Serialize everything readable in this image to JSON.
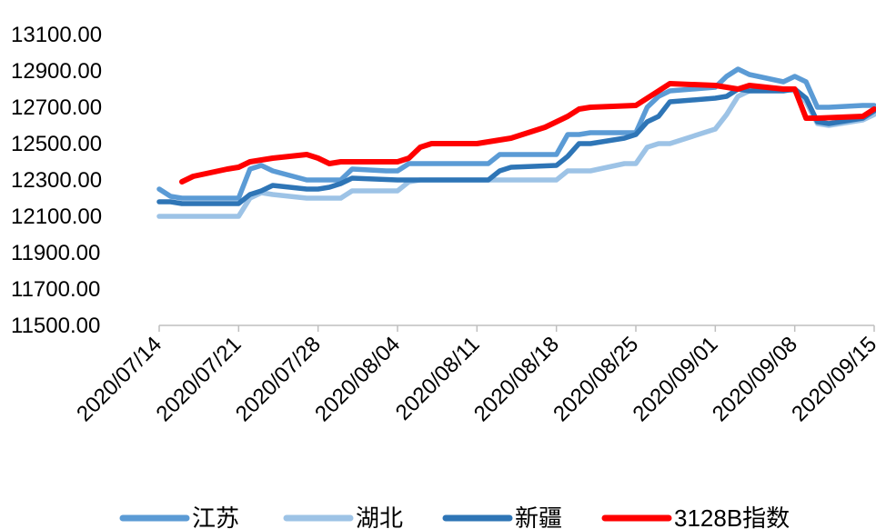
{
  "chart_data": {
    "type": "line",
    "title": "",
    "xlabel": "",
    "ylabel": "",
    "ylim": [
      11500,
      13100
    ],
    "yticks": [
      11500,
      11700,
      11900,
      12100,
      12300,
      12500,
      12700,
      12900,
      13100
    ],
    "ytick_labels": [
      "11500.00",
      "11700.00",
      "11900.00",
      "12100.00",
      "12300.00",
      "12500.00",
      "12700.00",
      "12900.00",
      "13100.00"
    ],
    "xticks": [
      "2020/07/14",
      "2020/07/21",
      "2020/07/28",
      "2020/08/04",
      "2020/08/11",
      "2020/08/18",
      "2020/08/25",
      "2020/09/01",
      "2020/09/08",
      "2020/09/15"
    ],
    "x_start": "2020/07/14",
    "x_end": "2020/09/15",
    "grid": false,
    "legend_position": "bottom",
    "series": [
      {
        "name": "江苏",
        "color": "#5B9BD5",
        "points": [
          [
            "2020/07/14",
            12250
          ],
          [
            "2020/07/15",
            12210
          ],
          [
            "2020/07/16",
            12200
          ],
          [
            "2020/07/21",
            12200
          ],
          [
            "2020/07/22",
            12360
          ],
          [
            "2020/07/23",
            12380
          ],
          [
            "2020/07/24",
            12350
          ],
          [
            "2020/07/27",
            12300
          ],
          [
            "2020/07/29",
            12300
          ],
          [
            "2020/07/30",
            12300
          ],
          [
            "2020/07/31",
            12360
          ],
          [
            "2020/08/03",
            12350
          ],
          [
            "2020/08/04",
            12350
          ],
          [
            "2020/08/05",
            12390
          ],
          [
            "2020/08/12",
            12390
          ],
          [
            "2020/08/13",
            12440
          ],
          [
            "2020/08/18",
            12440
          ],
          [
            "2020/08/19",
            12550
          ],
          [
            "2020/08/20",
            12550
          ],
          [
            "2020/08/21",
            12560
          ],
          [
            "2020/08/25",
            12560
          ],
          [
            "2020/08/26",
            12700
          ],
          [
            "2020/08/27",
            12760
          ],
          [
            "2020/08/28",
            12790
          ],
          [
            "2020/09/01",
            12810
          ],
          [
            "2020/09/02",
            12870
          ],
          [
            "2020/09/03",
            12910
          ],
          [
            "2020/09/04",
            12880
          ],
          [
            "2020/09/07",
            12840
          ],
          [
            "2020/09/08",
            12870
          ],
          [
            "2020/09/09",
            12840
          ],
          [
            "2020/09/10",
            12700
          ],
          [
            "2020/09/11",
            12700
          ],
          [
            "2020/09/14",
            12710
          ],
          [
            "2020/09/15",
            12710
          ]
        ]
      },
      {
        "name": "湖北",
        "color": "#9DC3E6",
        "points": [
          [
            "2020/07/14",
            12100
          ],
          [
            "2020/07/21",
            12100
          ],
          [
            "2020/07/22",
            12200
          ],
          [
            "2020/07/23",
            12230
          ],
          [
            "2020/07/24",
            12220
          ],
          [
            "2020/07/27",
            12200
          ],
          [
            "2020/07/30",
            12200
          ],
          [
            "2020/07/31",
            12240
          ],
          [
            "2020/08/04",
            12240
          ],
          [
            "2020/08/05",
            12290
          ],
          [
            "2020/08/06",
            12300
          ],
          [
            "2020/08/18",
            12300
          ],
          [
            "2020/08/19",
            12350
          ],
          [
            "2020/08/21",
            12350
          ],
          [
            "2020/08/24",
            12390
          ],
          [
            "2020/08/25",
            12390
          ],
          [
            "2020/08/26",
            12480
          ],
          [
            "2020/08/27",
            12500
          ],
          [
            "2020/08/28",
            12500
          ],
          [
            "2020/09/01",
            12580
          ],
          [
            "2020/09/02",
            12660
          ],
          [
            "2020/09/03",
            12760
          ],
          [
            "2020/09/04",
            12790
          ],
          [
            "2020/09/07",
            12800
          ],
          [
            "2020/09/08",
            12790
          ],
          [
            "2020/09/09",
            12730
          ],
          [
            "2020/09/10",
            12610
          ],
          [
            "2020/09/11",
            12600
          ],
          [
            "2020/09/14",
            12630
          ],
          [
            "2020/09/15",
            12660
          ]
        ]
      },
      {
        "name": "新疆",
        "color": "#2E75B6",
        "points": [
          [
            "2020/07/14",
            12180
          ],
          [
            "2020/07/15",
            12180
          ],
          [
            "2020/07/16",
            12170
          ],
          [
            "2020/07/21",
            12170
          ],
          [
            "2020/07/22",
            12220
          ],
          [
            "2020/07/23",
            12240
          ],
          [
            "2020/07/24",
            12270
          ],
          [
            "2020/07/27",
            12250
          ],
          [
            "2020/07/28",
            12250
          ],
          [
            "2020/07/29",
            12260
          ],
          [
            "2020/07/30",
            12280
          ],
          [
            "2020/07/31",
            12310
          ],
          [
            "2020/08/04",
            12300
          ],
          [
            "2020/08/12",
            12300
          ],
          [
            "2020/08/13",
            12350
          ],
          [
            "2020/08/14",
            12370
          ],
          [
            "2020/08/18",
            12380
          ],
          [
            "2020/08/19",
            12430
          ],
          [
            "2020/08/20",
            12500
          ],
          [
            "2020/08/21",
            12500
          ],
          [
            "2020/08/24",
            12530
          ],
          [
            "2020/08/25",
            12550
          ],
          [
            "2020/08/26",
            12620
          ],
          [
            "2020/08/27",
            12650
          ],
          [
            "2020/08/28",
            12730
          ],
          [
            "2020/09/01",
            12750
          ],
          [
            "2020/09/02",
            12760
          ],
          [
            "2020/09/03",
            12800
          ],
          [
            "2020/09/04",
            12790
          ],
          [
            "2020/09/07",
            12790
          ],
          [
            "2020/09/08",
            12800
          ],
          [
            "2020/09/09",
            12750
          ],
          [
            "2020/09/10",
            12620
          ],
          [
            "2020/09/11",
            12610
          ],
          [
            "2020/09/14",
            12640
          ],
          [
            "2020/09/15",
            12680
          ]
        ]
      },
      {
        "name": "3128B指数",
        "color": "#FF0000",
        "points": [
          [
            "2020/07/16",
            12290
          ],
          [
            "2020/07/17",
            12320
          ],
          [
            "2020/07/20",
            12360
          ],
          [
            "2020/07/21",
            12370
          ],
          [
            "2020/07/22",
            12400
          ],
          [
            "2020/07/24",
            12420
          ],
          [
            "2020/07/27",
            12440
          ],
          [
            "2020/07/28",
            12420
          ],
          [
            "2020/07/29",
            12390
          ],
          [
            "2020/07/30",
            12400
          ],
          [
            "2020/08/04",
            12400
          ],
          [
            "2020/08/05",
            12420
          ],
          [
            "2020/08/06",
            12480
          ],
          [
            "2020/08/07",
            12500
          ],
          [
            "2020/08/11",
            12500
          ],
          [
            "2020/08/12",
            12510
          ],
          [
            "2020/08/14",
            12530
          ],
          [
            "2020/08/17",
            12590
          ],
          [
            "2020/08/18",
            12620
          ],
          [
            "2020/08/19",
            12650
          ],
          [
            "2020/08/20",
            12690
          ],
          [
            "2020/08/21",
            12700
          ],
          [
            "2020/08/25",
            12710
          ],
          [
            "2020/08/26",
            12750
          ],
          [
            "2020/08/27",
            12790
          ],
          [
            "2020/08/28",
            12830
          ],
          [
            "2020/09/01",
            12820
          ],
          [
            "2020/09/02",
            12810
          ],
          [
            "2020/09/03",
            12800
          ],
          [
            "2020/09/04",
            12820
          ],
          [
            "2020/09/07",
            12800
          ],
          [
            "2020/09/08",
            12800
          ],
          [
            "2020/09/09",
            12640
          ],
          [
            "2020/09/10",
            12640
          ],
          [
            "2020/09/14",
            12650
          ],
          [
            "2020/09/15",
            12690
          ]
        ]
      }
    ]
  }
}
